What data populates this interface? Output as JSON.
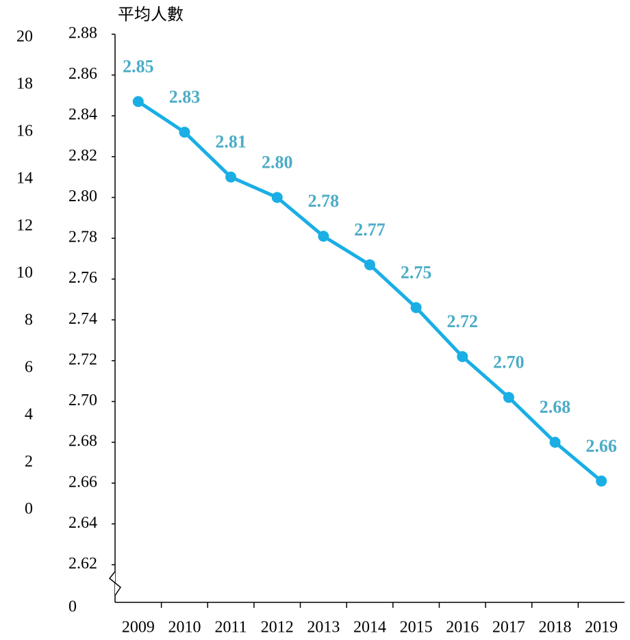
{
  "chart_data": {
    "type": "line",
    "title": "平均人數",
    "categories": [
      "2009",
      "2010",
      "2011",
      "2012",
      "2013",
      "2014",
      "2015",
      "2016",
      "2017",
      "2018",
      "2019"
    ],
    "series": [
      {
        "name": "平均人數",
        "color": "#1aaee5",
        "values": [
          2.847,
          2.832,
          2.81,
          2.8,
          2.781,
          2.767,
          2.746,
          2.722,
          2.702,
          2.68,
          2.661
        ],
        "value_labels": [
          "2.85",
          "2.83",
          "2.81",
          "2.80",
          "2.78",
          "2.77",
          "2.75",
          "2.72",
          "2.70",
          "2.68",
          "2.66"
        ]
      }
    ],
    "ylim": [
      2.62,
      2.88
    ],
    "yticks": [
      2.62,
      2.64,
      2.66,
      2.68,
      {
        "value": 2.7,
        "label": "2.70"
      },
      2.72,
      2.74,
      2.76,
      2.78,
      {
        "value": 2.8,
        "label": "2.80"
      },
      2.82,
      2.84,
      2.86,
      2.88
    ],
    "y_break_label": "0",
    "y2lim": [
      0,
      20
    ],
    "y2ticks": [
      0,
      2,
      4,
      6,
      8,
      10,
      12,
      14,
      16,
      18,
      20
    ]
  }
}
